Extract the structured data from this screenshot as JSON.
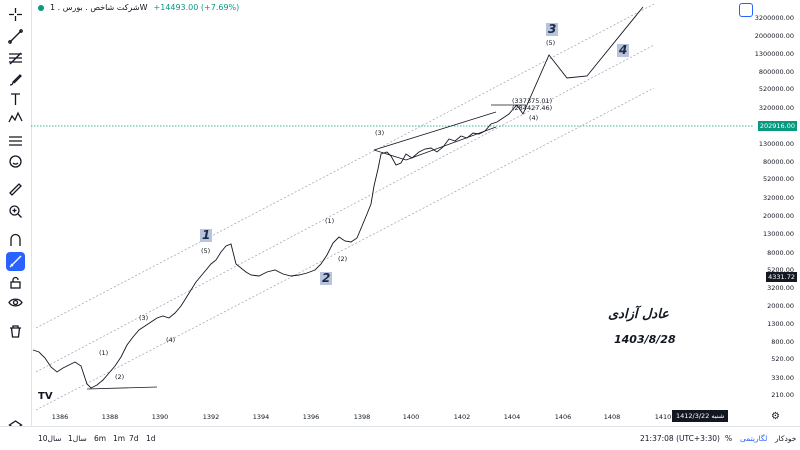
{
  "legend": {
    "title": "شرکت شاخص . بورس . 1W",
    "change": "+14493.00 (+7.69%)"
  },
  "toolbar": {
    "tools": [
      "crosshair-icon",
      "trendline-icon",
      "fib-icon",
      "brush-icon",
      "text-icon",
      "pattern-icon",
      "measure-icon",
      "emoji-icon",
      "ruler-icon",
      "zoom-icon",
      "magnet-icon",
      "lock-drawing-icon",
      "lock-icon",
      "eye-icon",
      "trash-icon"
    ]
  },
  "price_scale": {
    "ticks": [
      "3200000.00",
      "2000000.00",
      "1300000.00",
      "800000.00",
      "520000.00",
      "320000.00",
      "130000.00",
      "80000.00",
      "52000.00",
      "32000.00",
      "20000.00",
      "13000.00",
      "8000.00",
      "5200.00",
      "3200.00",
      "2000.00",
      "1300.00",
      "800.00",
      "520.00",
      "330.00",
      "210.00"
    ],
    "last_price": "202916.00",
    "crosshair_price": "4331.72"
  },
  "time_axis": {
    "ticks": [
      "1386",
      "1388",
      "1390",
      "1392",
      "1394",
      "1396",
      "1398",
      "1400",
      "1402",
      "1404",
      "1406",
      "1408",
      "1410"
    ],
    "crosshair_date": "شنبه  1412/3/22"
  },
  "annotations": {
    "author_name": "عادل آزادی",
    "author_date": "1403/8/28",
    "big_waves": [
      "1",
      "2",
      "3",
      "4"
    ],
    "small_labels": [
      "(1)",
      "(2)",
      "(3)",
      "(4)",
      "(5)",
      "(1)",
      "(2)",
      "(3)",
      "(4)",
      "(5)",
      "(5)"
    ],
    "price_box": [
      "(337375.01)",
      "(284427.46)"
    ]
  },
  "bottom_bar": {
    "ranges": [
      "10سال",
      "1سال",
      "6m",
      "1m",
      "7d",
      "1d"
    ],
    "time": "21:37:08 (UTC+3:30)",
    "percent": "%",
    "log": "لگاریتمی",
    "auto": "خودکار"
  },
  "colors": {
    "up": "#089981",
    "accent": "#2962ff",
    "wave_tag": "#b8c4dc"
  }
}
